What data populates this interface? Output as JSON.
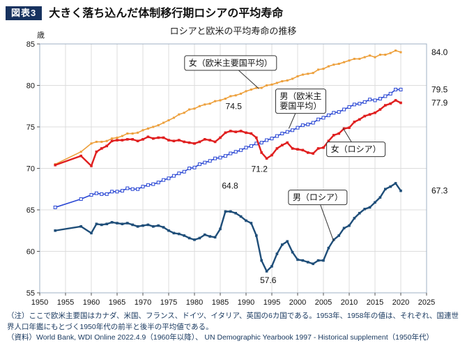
{
  "header": {
    "badge": "図表3",
    "badge_color": "#17325f",
    "title": "大きく落ち込んだ体制移行期ロシアの平均寿命"
  },
  "footer": {
    "text_color": "#17375e",
    "note": "（注）ここで欧米主要国はカナダ、米国、フランス、ドイツ、イタリア、英国の6カ国である。1953年、1958年の値は、それぞれ、国連世界人口年鑑にもとづく1950年代の前半と後半の平均値である。",
    "source": "（資料）World Bank, WDI Online 2022.4.9（1960年以降）、 UN Demographic Yearbook 1997 - Historical supplement（1950年代）"
  },
  "chart_data": {
    "type": "line",
    "title": "ロシアと欧米の平均寿命の推移",
    "xlabel": "",
    "ylabel": "歳",
    "xlim": [
      1950,
      2025
    ],
    "ylim": [
      55,
      85
    ],
    "x_ticks": [
      1950,
      1955,
      1960,
      1965,
      1970,
      1975,
      1980,
      1985,
      1990,
      1995,
      2000,
      2005,
      2010,
      2015,
      2020,
      2025
    ],
    "y_ticks": [
      55,
      60,
      65,
      70,
      75,
      80,
      85
    ],
    "grid": true,
    "legend_position": "inline-labels",
    "x": [
      1953,
      1958,
      1960,
      1961,
      1962,
      1963,
      1964,
      1965,
      1966,
      1967,
      1968,
      1969,
      1970,
      1971,
      1972,
      1973,
      1974,
      1975,
      1976,
      1977,
      1978,
      1979,
      1980,
      1981,
      1982,
      1983,
      1984,
      1985,
      1986,
      1987,
      1988,
      1989,
      1990,
      1991,
      1992,
      1993,
      1994,
      1995,
      1996,
      1997,
      1998,
      1999,
      2000,
      2001,
      2002,
      2003,
      2004,
      2005,
      2006,
      2007,
      2008,
      2009,
      2010,
      2011,
      2012,
      2013,
      2014,
      2015,
      2016,
      2017,
      2018,
      2019,
      2020
    ],
    "series": [
      {
        "key": "women-west",
        "name": "女（欧米主要国平均）",
        "color": "#eda03c",
        "width": 1.6,
        "marker": "filled",
        "marker_size": 3,
        "end_label": "84.0",
        "values": [
          70.5,
          72.0,
          73.0,
          73.2,
          73.2,
          73.3,
          73.6,
          73.7,
          73.9,
          74.2,
          74.2,
          74.3,
          74.6,
          74.8,
          75.0,
          75.2,
          75.5,
          75.8,
          76.1,
          76.5,
          76.7,
          77.1,
          77.2,
          77.5,
          77.7,
          77.8,
          78.1,
          78.2,
          78.4,
          78.7,
          78.8,
          79.0,
          79.3,
          79.5,
          79.7,
          79.7,
          80.0,
          80.1,
          80.3,
          80.5,
          80.6,
          80.8,
          81.1,
          81.3,
          81.4,
          81.5,
          81.9,
          82.0,
          82.3,
          82.5,
          82.6,
          82.8,
          83.0,
          83.2,
          83.2,
          83.4,
          83.6,
          83.4,
          83.7,
          83.7,
          83.9,
          84.2,
          84.0
        ]
      },
      {
        "key": "men-west",
        "name": "男（欧米主要国平均）",
        "color": "#2b48d4",
        "width": 1.6,
        "marker": "open",
        "marker_size": 4,
        "end_label": "79.5",
        "values": [
          65.3,
          66.3,
          66.8,
          67.0,
          66.9,
          66.9,
          67.2,
          67.2,
          67.3,
          67.6,
          67.5,
          67.5,
          67.8,
          68.0,
          68.1,
          68.3,
          68.6,
          68.8,
          69.1,
          69.4,
          69.6,
          70.0,
          70.1,
          70.5,
          70.7,
          70.9,
          71.2,
          71.3,
          71.5,
          71.8,
          72.0,
          72.2,
          72.5,
          72.7,
          73.0,
          73.1,
          73.4,
          73.6,
          73.9,
          74.2,
          74.4,
          74.6,
          74.9,
          75.2,
          75.3,
          75.5,
          75.9,
          76.1,
          76.4,
          76.7,
          76.8,
          77.1,
          77.4,
          77.7,
          77.8,
          78.0,
          78.3,
          78.2,
          78.4,
          78.7,
          79.0,
          79.5,
          79.5
        ]
      },
      {
        "key": "women-russia",
        "name": "女（ロシア）",
        "color": "#e01f1f",
        "width": 2.4,
        "marker": "filled",
        "marker_size": 3.6,
        "end_label": "77.9",
        "values": [
          70.4,
          71.5,
          70.3,
          72.0,
          72.4,
          72.7,
          73.3,
          73.4,
          73.4,
          73.5,
          73.5,
          73.3,
          73.5,
          73.8,
          73.6,
          73.7,
          73.7,
          73.4,
          73.3,
          73.4,
          73.2,
          73.1,
          73.0,
          73.2,
          73.5,
          73.4,
          73.2,
          73.7,
          74.3,
          74.5,
          74.4,
          74.5,
          74.3,
          74.2,
          73.7,
          71.9,
          71.2,
          71.6,
          72.4,
          72.8,
          73.1,
          72.4,
          72.3,
          72.2,
          71.9,
          71.8,
          72.4,
          72.5,
          73.3,
          74.0,
          74.2,
          74.8,
          74.9,
          75.6,
          75.9,
          76.3,
          76.5,
          76.7,
          77.1,
          77.6,
          77.8,
          78.2,
          77.9
        ]
      },
      {
        "key": "men-russia",
        "name": "男（ロシア）",
        "color": "#1f4e79",
        "width": 2.4,
        "marker": "filled",
        "marker_size": 3.6,
        "end_label": "67.3",
        "values": [
          62.5,
          63.0,
          62.2,
          63.3,
          63.2,
          63.3,
          63.5,
          63.4,
          63.3,
          63.4,
          63.2,
          63.0,
          63.1,
          63.2,
          63.0,
          63.1,
          62.9,
          62.5,
          62.2,
          62.1,
          61.9,
          61.6,
          61.4,
          61.6,
          62.0,
          61.8,
          61.7,
          62.7,
          64.8,
          64.8,
          64.6,
          64.2,
          63.7,
          63.4,
          61.9,
          58.9,
          57.6,
          58.2,
          59.7,
          60.8,
          61.2,
          59.9,
          59.0,
          58.9,
          58.7,
          58.5,
          58.9,
          58.9,
          60.4,
          61.4,
          61.9,
          62.8,
          63.1,
          64.0,
          64.6,
          65.1,
          65.3,
          65.9,
          66.5,
          67.5,
          67.8,
          68.2,
          67.3
        ]
      }
    ],
    "annotations": [
      {
        "text": "74.5",
        "x": 1987.6,
        "y": 77.5
      },
      {
        "text": "71.2",
        "x": 1992.6,
        "y": 69.9
      },
      {
        "text": "64.8",
        "x": 1986.9,
        "y": 67.9
      },
      {
        "text": "57.6",
        "x": 1994.3,
        "y": 56.5
      }
    ],
    "series_labels": [
      {
        "lines": [
          "女（欧米主要国平均）"
        ],
        "x": 1987.0,
        "y": 82.7,
        "tx": 1992.5,
        "ty": 79.6
      },
      {
        "lines": [
          "男（欧米主",
          "要国平均）"
        ],
        "x": 2000.6,
        "y": 78.1,
        "tx": 1998.3,
        "ty": 74.8
      },
      {
        "lines": [
          "女（ロシア）"
        ],
        "x": 2011.3,
        "y": 72.3,
        "tx": 2008.8,
        "ty": 74.85
      },
      {
        "lines": [
          "男（ロシア）"
        ],
        "x": 2003.9,
        "y": 66.5,
        "tx": 2007.0,
        "ty": 61.2
      }
    ]
  }
}
